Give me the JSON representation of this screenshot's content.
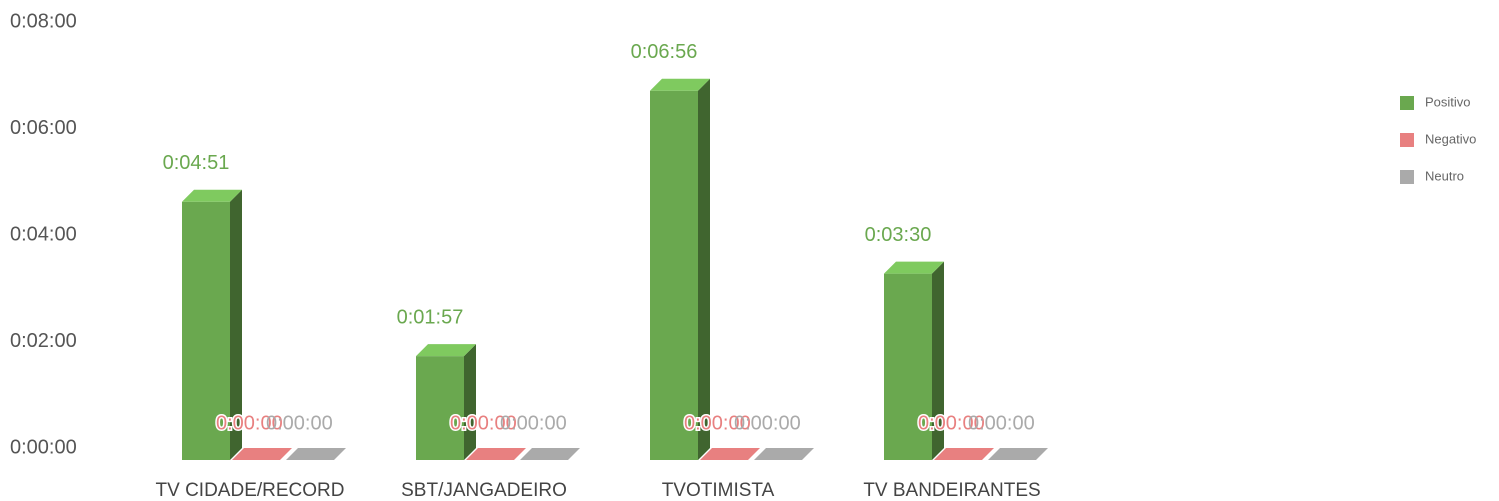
{
  "chart_data": {
    "type": "bar3d",
    "categories": [
      "TV CIDADE/RECORD",
      "SBT/JANGADEIRO",
      "TVOTIMISTA",
      "TV BANDEIRANTES"
    ],
    "series": [
      {
        "name": "Positivo",
        "color": "#6aa84f",
        "values": [
          291,
          117,
          416,
          210
        ],
        "value_labels": [
          "0:04:51",
          "0:01:57",
          "0:06:56",
          "0:03:30"
        ]
      },
      {
        "name": "Negativo",
        "color": "#e88080",
        "values": [
          0,
          0,
          0,
          0
        ],
        "value_labels": [
          "0:00:00",
          "0:00:00",
          "0:00:00",
          "0:00:00"
        ]
      },
      {
        "name": "Neutro",
        "color": "#aaaaaa",
        "values": [
          0,
          0,
          0,
          0
        ],
        "value_labels": [
          "0:00:00",
          "0:00:00",
          "0:00:00",
          "0:00:00"
        ]
      }
    ],
    "ylim": [
      0,
      480
    ],
    "yticks": [
      {
        "value": 0,
        "label": "0:00:00"
      },
      {
        "value": 120,
        "label": "0:02:00"
      },
      {
        "value": 240,
        "label": "0:04:00"
      },
      {
        "value": 360,
        "label": "0:06:00"
      },
      {
        "value": 480,
        "label": "0:08:00"
      }
    ],
    "legend": "right"
  }
}
